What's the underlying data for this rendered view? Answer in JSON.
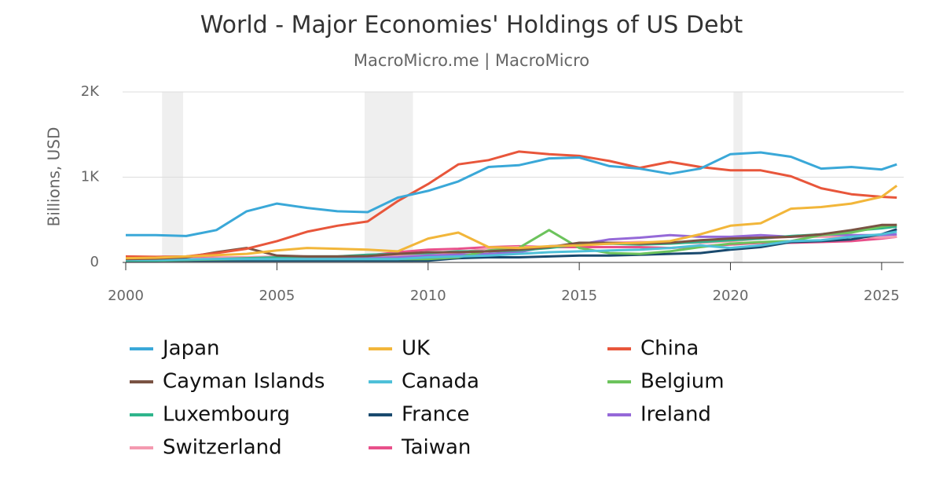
{
  "chart_data": {
    "type": "line",
    "title": "World - Major Economies' Holdings of US Debt",
    "subtitle": "MacroMicro.me | MacroMicro",
    "y_label": "Billions, USD",
    "x": [
      2000,
      2001,
      2002,
      2003,
      2004,
      2005,
      2006,
      2007,
      2008,
      2009,
      2010,
      2011,
      2012,
      2013,
      2014,
      2015,
      2016,
      2017,
      2018,
      2019,
      2020,
      2021,
      2022,
      2023,
      2024,
      2025,
      2025.5
    ],
    "xlim": [
      2000,
      2025.73
    ],
    "xticks": [
      2000,
      2005,
      2010,
      2015,
      2020,
      2025
    ],
    "ylim": [
      0,
      2000
    ],
    "yticks": [
      0,
      {
        "value": 1000,
        "label": "1K"
      },
      {
        "value": 2000,
        "label": "2K"
      }
    ],
    "grid": true,
    "shaded_periods": [
      [
        2001.2,
        2001.9
      ],
      [
        2007.9,
        2009.5
      ],
      [
        2020.1,
        2020.4
      ]
    ],
    "series": [
      {
        "name": "Japan",
        "color": "#3aa8d8",
        "values": [
          320,
          320,
          310,
          380,
          600,
          690,
          640,
          600,
          590,
          760,
          840,
          950,
          1120,
          1140,
          1220,
          1230,
          1130,
          1100,
          1040,
          1100,
          1270,
          1290,
          1240,
          1100,
          1120,
          1090,
          1150
        ]
      },
      {
        "name": "UK",
        "color": "#f2b63a",
        "values": [
          50,
          55,
          70,
          85,
          100,
          140,
          170,
          160,
          150,
          130,
          280,
          350,
          180,
          170,
          190,
          200,
          220,
          230,
          250,
          330,
          430,
          460,
          630,
          650,
          690,
          770,
          900
        ]
      },
      {
        "name": "China",
        "color": "#e8563b",
        "values": [
          70,
          65,
          70,
          110,
          160,
          250,
          360,
          430,
          480,
          720,
          920,
          1150,
          1200,
          1300,
          1270,
          1250,
          1190,
          1110,
          1180,
          1120,
          1080,
          1080,
          1010,
          870,
          800,
          770,
          760
        ]
      },
      {
        "name": "Cayman Islands",
        "color": "#7a5343",
        "values": [
          40,
          45,
          60,
          120,
          170,
          80,
          70,
          70,
          75,
          100,
          120,
          120,
          130,
          150,
          180,
          230,
          230,
          220,
          230,
          260,
          280,
          290,
          300,
          330,
          380,
          440,
          440
        ]
      },
      {
        "name": "Canada",
        "color": "#4fc0d8",
        "values": [
          30,
          30,
          35,
          40,
          40,
          40,
          40,
          40,
          40,
          40,
          60,
          70,
          80,
          100,
          120,
          130,
          140,
          150,
          170,
          200,
          170,
          200,
          250,
          260,
          300,
          330,
          360
        ]
      },
      {
        "name": "Belgium",
        "color": "#6cc35c",
        "values": [
          30,
          30,
          30,
          35,
          40,
          40,
          40,
          40,
          40,
          40,
          40,
          60,
          140,
          170,
          380,
          170,
          110,
          100,
          130,
          180,
          220,
          240,
          250,
          320,
          350,
          420,
          440
        ]
      },
      {
        "name": "Luxembourg",
        "color": "#2fb58c",
        "values": [
          20,
          20,
          30,
          40,
          50,
          60,
          70,
          70,
          90,
          100,
          110,
          130,
          130,
          140,
          170,
          210,
          220,
          210,
          220,
          240,
          260,
          280,
          310,
          330,
          370,
          400,
          420
        ]
      },
      {
        "name": "France",
        "color": "#1a4a6e",
        "values": [
          20,
          20,
          20,
          20,
          20,
          20,
          20,
          20,
          20,
          20,
          20,
          50,
          60,
          60,
          70,
          80,
          80,
          90,
          100,
          110,
          150,
          180,
          240,
          250,
          270,
          330,
          390
        ]
      },
      {
        "name": "Ireland",
        "color": "#9569d8",
        "values": [
          20,
          20,
          30,
          30,
          40,
          50,
          60,
          50,
          50,
          60,
          80,
          90,
          100,
          120,
          190,
          210,
          270,
          290,
          320,
          300,
          300,
          320,
          300,
          330,
          320,
          320,
          330
        ]
      },
      {
        "name": "Switzerland",
        "color": "#f49ab0",
        "values": [
          30,
          30,
          40,
          50,
          60,
          70,
          70,
          60,
          60,
          80,
          100,
          110,
          170,
          180,
          180,
          220,
          230,
          240,
          230,
          230,
          250,
          280,
          300,
          300,
          300,
          290,
          300
        ]
      },
      {
        "name": "Taiwan",
        "color": "#e8508a",
        "values": [
          40,
          40,
          50,
          55,
          60,
          65,
          65,
          60,
          80,
          120,
          150,
          160,
          180,
          190,
          180,
          180,
          180,
          180,
          170,
          190,
          210,
          230,
          230,
          240,
          250,
          280,
          300
        ]
      }
    ]
  }
}
